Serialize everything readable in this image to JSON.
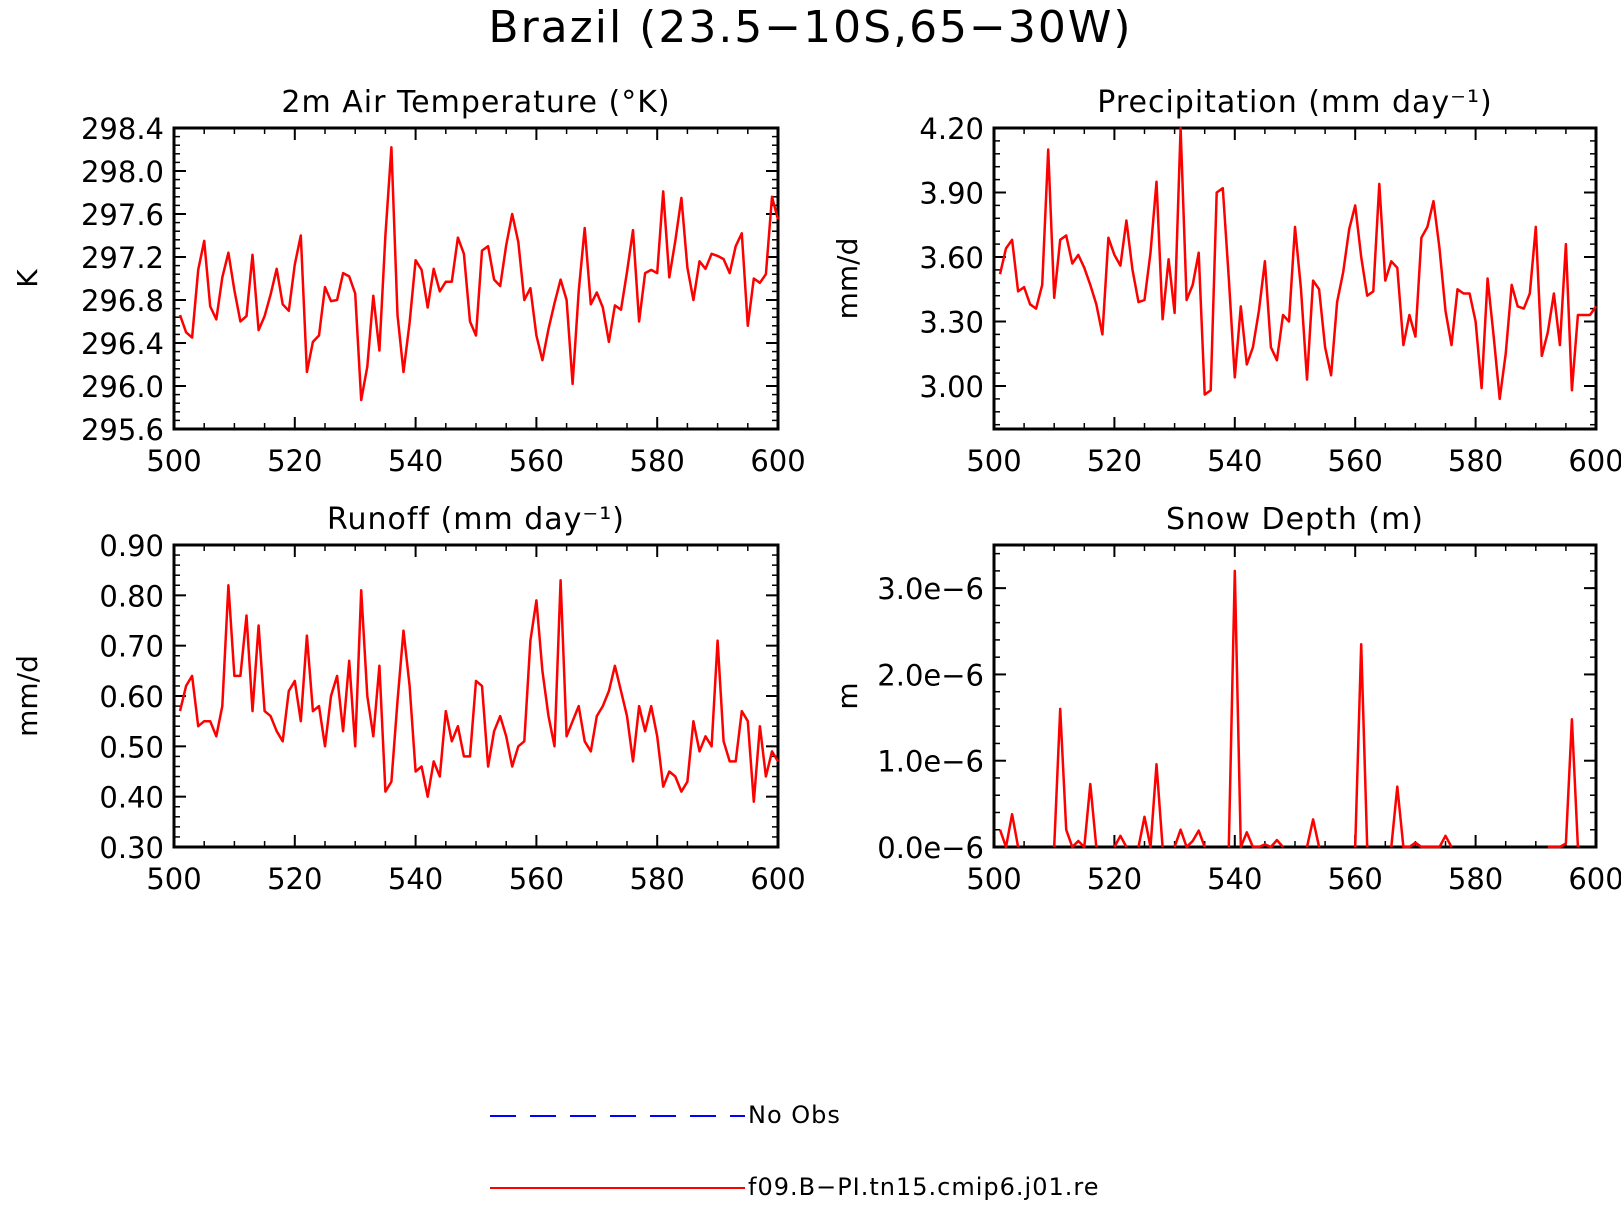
{
  "figure": {
    "title": "Brazil (23.5−10S,65−30W)"
  },
  "legend": {
    "entries": [
      {
        "label": "No Obs",
        "color": "#0000ff",
        "style": "dashed"
      },
      {
        "label": "f09.B−PI.tn15.cmip6.j01.re",
        "color": "#ff0000",
        "style": "solid"
      }
    ]
  },
  "chart_data": [
    {
      "type": "line",
      "title": "2m Air Temperature (°K)",
      "ylabel": "K",
      "xlim": [
        500,
        600
      ],
      "ylim": [
        295.6,
        298.4
      ],
      "xticks": [
        500,
        520,
        540,
        560,
        580,
        600
      ],
      "yticks": [
        295.6,
        296.0,
        296.4,
        296.8,
        297.2,
        297.6,
        298.0,
        298.4
      ],
      "ytick_labels": [
        "295.6",
        "296.0",
        "296.4",
        "296.8",
        "297.2",
        "297.6",
        "298.0",
        "298.4"
      ],
      "series": [
        {
          "name": "f09.B−PI.tn15.cmip6.j01.re",
          "color": "#ff0000",
          "x_start": 501,
          "x_step": 1,
          "values": [
            296.66,
            296.5,
            296.45,
            297.08,
            297.35,
            296.74,
            296.62,
            297.01,
            297.24,
            296.89,
            296.6,
            296.65,
            297.22,
            296.52,
            296.65,
            296.85,
            297.09,
            296.76,
            296.7,
            297.13,
            297.4,
            296.13,
            296.41,
            296.47,
            296.92,
            296.79,
            296.8,
            297.05,
            297.02,
            296.86,
            295.87,
            296.18,
            296.84,
            296.33,
            297.4,
            298.22,
            296.66,
            296.13,
            296.59,
            297.17,
            297.08,
            296.73,
            297.09,
            296.88,
            296.97,
            296.97,
            297.38,
            297.23,
            296.6,
            296.47,
            297.26,
            297.3,
            296.99,
            296.93,
            297.31,
            297.6,
            297.34,
            296.8,
            296.91,
            296.47,
            296.24,
            296.53,
            296.77,
            296.99,
            296.8,
            296.02,
            296.88,
            297.47,
            296.76,
            296.87,
            296.73,
            296.41,
            296.75,
            296.71,
            297.06,
            297.45,
            296.6,
            297.05,
            297.08,
            297.05,
            297.81,
            297.01,
            297.35,
            297.75,
            297.1,
            296.8,
            297.16,
            297.09,
            297.23,
            297.21,
            297.18,
            297.05,
            297.3,
            297.42,
            296.56,
            297.0,
            296.96,
            297.04,
            297.76,
            297.55
          ]
        }
      ]
    },
    {
      "type": "line",
      "title": "Precipitation (mm day⁻¹)",
      "ylabel": "mm/d",
      "xlim": [
        500,
        600
      ],
      "ylim": [
        2.8,
        4.2
      ],
      "xticks": [
        500,
        520,
        540,
        560,
        580,
        600
      ],
      "yticks": [
        3.0,
        3.3,
        3.6,
        3.9,
        4.2
      ],
      "ytick_labels": [
        "3.00",
        "3.30",
        "3.60",
        "3.90",
        "4.20"
      ],
      "series": [
        {
          "name": "f09.B−PI.tn15.cmip6.j01.re",
          "color": "#ff0000",
          "x_start": 501,
          "x_step": 1,
          "values": [
            3.52,
            3.64,
            3.68,
            3.44,
            3.46,
            3.38,
            3.36,
            3.47,
            4.1,
            3.41,
            3.68,
            3.7,
            3.57,
            3.61,
            3.55,
            3.47,
            3.38,
            3.24,
            3.69,
            3.61,
            3.56,
            3.77,
            3.54,
            3.39,
            3.4,
            3.62,
            3.95,
            3.31,
            3.59,
            3.34,
            4.2,
            3.4,
            3.47,
            3.62,
            2.96,
            2.98,
            3.9,
            3.92,
            3.5,
            3.04,
            3.37,
            3.1,
            3.18,
            3.35,
            3.58,
            3.18,
            3.12,
            3.33,
            3.3,
            3.74,
            3.45,
            3.03,
            3.49,
            3.45,
            3.18,
            3.05,
            3.39,
            3.53,
            3.73,
            3.84,
            3.6,
            3.42,
            3.44,
            3.94,
            3.49,
            3.58,
            3.55,
            3.19,
            3.33,
            3.23,
            3.69,
            3.74,
            3.86,
            3.64,
            3.35,
            3.19,
            3.45,
            3.43,
            3.43,
            3.3,
            2.99,
            3.5,
            3.23,
            2.94,
            3.15,
            3.47,
            3.37,
            3.36,
            3.43,
            3.74,
            3.14,
            3.25,
            3.43,
            3.19,
            3.66,
            2.98,
            3.33,
            3.33,
            3.33,
            3.37
          ]
        }
      ]
    },
    {
      "type": "line",
      "title": "Runoff (mm day⁻¹)",
      "ylabel": "mm/d",
      "xlim": [
        500,
        600
      ],
      "ylim": [
        0.3,
        0.9
      ],
      "xticks": [
        500,
        520,
        540,
        560,
        580,
        600
      ],
      "yticks": [
        0.3,
        0.4,
        0.5,
        0.6,
        0.7,
        0.8,
        0.9
      ],
      "ytick_labels": [
        "0.30",
        "0.40",
        "0.50",
        "0.60",
        "0.70",
        "0.80",
        "0.90"
      ],
      "series": [
        {
          "name": "f09.B−PI.tn15.cmip6.j01.re",
          "color": "#ff0000",
          "x_start": 501,
          "x_step": 1,
          "values": [
            0.57,
            0.62,
            0.64,
            0.54,
            0.55,
            0.55,
            0.52,
            0.58,
            0.82,
            0.64,
            0.64,
            0.76,
            0.57,
            0.74,
            0.57,
            0.56,
            0.53,
            0.51,
            0.61,
            0.63,
            0.55,
            0.72,
            0.57,
            0.58,
            0.5,
            0.6,
            0.64,
            0.53,
            0.67,
            0.5,
            0.81,
            0.6,
            0.52,
            0.66,
            0.41,
            0.43,
            0.59,
            0.73,
            0.62,
            0.45,
            0.46,
            0.4,
            0.47,
            0.44,
            0.57,
            0.51,
            0.54,
            0.48,
            0.48,
            0.63,
            0.62,
            0.46,
            0.53,
            0.56,
            0.52,
            0.46,
            0.5,
            0.51,
            0.71,
            0.79,
            0.65,
            0.56,
            0.5,
            0.83,
            0.52,
            0.55,
            0.58,
            0.51,
            0.49,
            0.56,
            0.58,
            0.61,
            0.66,
            0.61,
            0.56,
            0.47,
            0.58,
            0.53,
            0.58,
            0.52,
            0.42,
            0.45,
            0.44,
            0.41,
            0.43,
            0.55,
            0.49,
            0.52,
            0.5,
            0.71,
            0.51,
            0.47,
            0.47,
            0.57,
            0.55,
            0.39,
            0.54,
            0.44,
            0.49,
            0.47
          ]
        }
      ]
    },
    {
      "type": "line",
      "title": "Snow Depth (m)",
      "ylabel": "m",
      "xlim": [
        500,
        600
      ],
      "ylim": [
        0.0,
        3.5e-06
      ],
      "xticks": [
        500,
        520,
        540,
        560,
        580,
        600
      ],
      "yticks": [
        0.0,
        1e-06,
        2e-06,
        3e-06
      ],
      "ytick_labels": [
        "0.0e−6",
        "1.0e−6",
        "2.0e−6",
        "3.0e−6"
      ],
      "series": [
        {
          "name": "f09.B−PI.tn15.cmip6.j01.re",
          "color": "#ff0000",
          "x_start": 501,
          "x_step": 1,
          "values": [
            2e-07,
            0,
            3.8e-07,
            0,
            null,
            null,
            null,
            null,
            null,
            0,
            1.6e-06,
            2e-07,
            0,
            7e-08,
            0,
            7.3e-07,
            0,
            null,
            null,
            0,
            1.3e-07,
            0,
            null,
            0,
            3.5e-07,
            0,
            9.6e-07,
            0,
            null,
            0,
            2e-07,
            0,
            7e-08,
            1.9e-07,
            0,
            null,
            null,
            null,
            0,
            3.2e-06,
            0,
            1.7e-07,
            0,
            0,
            3e-08,
            0,
            8e-08,
            0,
            null,
            null,
            null,
            0,
            3.2e-07,
            0,
            null,
            null,
            null,
            null,
            null,
            0,
            2.35e-06,
            0,
            null,
            null,
            null,
            0,
            7e-07,
            0,
            0,
            5e-08,
            0,
            0,
            0,
            0,
            1.3e-07,
            0,
            null,
            null,
            null,
            null,
            null,
            null,
            null,
            null,
            null,
            null,
            null,
            null,
            null,
            null,
            null,
            0,
            0,
            0,
            4e-08,
            1.48e-06,
            0,
            null,
            null,
            null
          ]
        }
      ]
    }
  ]
}
